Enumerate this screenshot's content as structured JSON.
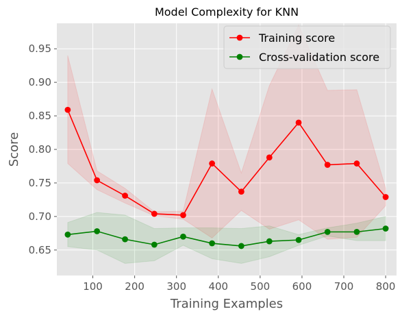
{
  "chart_data": {
    "type": "line",
    "title": "Model Complexity for KNN",
    "xlabel": "Training Examples",
    "ylabel": "Score",
    "xlim": [
      14,
      826
    ],
    "ylim": [
      0.612,
      0.988
    ],
    "xticks": [
      100,
      200,
      300,
      400,
      500,
      600,
      700,
      800
    ],
    "xtick_labels": [
      "100",
      "200",
      "300",
      "400",
      "500",
      "600",
      "700",
      "800"
    ],
    "yticks": [
      0.65,
      0.7,
      0.75,
      0.8,
      0.85,
      0.9,
      0.95
    ],
    "ytick_labels": [
      "0.65",
      "0.70",
      "0.75",
      "0.80",
      "0.85",
      "0.90",
      "0.95"
    ],
    "grid": true,
    "legend_position": "top-right",
    "x": [
      40,
      110,
      177,
      247,
      316,
      385,
      455,
      522,
      592,
      661,
      731,
      800
    ],
    "series": [
      {
        "name": "Training score",
        "color": "#ff0000",
        "band_color": "#ff0000",
        "values": [
          0.859,
          0.754,
          0.731,
          0.704,
          0.702,
          0.779,
          0.737,
          0.788,
          0.84,
          0.777,
          0.779,
          0.729
        ],
        "upper": [
          0.94,
          0.768,
          0.742,
          0.707,
          0.708,
          0.89,
          0.765,
          0.895,
          0.985,
          0.888,
          0.889,
          0.742
        ],
        "lower": [
          0.779,
          0.74,
          0.72,
          0.701,
          0.696,
          0.668,
          0.709,
          0.681,
          0.695,
          0.666,
          0.669,
          0.716
        ]
      },
      {
        "name": "Cross-validation score",
        "color": "#008000",
        "band_color": "#008000",
        "values": [
          0.673,
          0.678,
          0.666,
          0.658,
          0.67,
          0.66,
          0.656,
          0.663,
          0.665,
          0.677,
          0.677,
          0.682
        ],
        "upper": [
          0.691,
          0.706,
          0.702,
          0.682,
          0.683,
          0.683,
          0.682,
          0.686,
          0.673,
          0.683,
          0.69,
          0.7
        ],
        "lower": [
          0.655,
          0.65,
          0.63,
          0.634,
          0.657,
          0.637,
          0.63,
          0.64,
          0.657,
          0.671,
          0.664,
          0.664
        ]
      }
    ]
  }
}
